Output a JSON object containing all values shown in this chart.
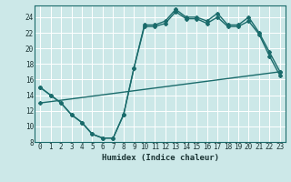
{
  "xlabel": "Humidex (Indice chaleur)",
  "bg_color": "#cce8e8",
  "grid_color": "#ffffff",
  "line_color": "#1a6b6b",
  "xlim_min": -0.5,
  "xlim_max": 23.5,
  "ylim_min": 8,
  "ylim_max": 25.5,
  "xticks": [
    0,
    1,
    2,
    3,
    4,
    5,
    6,
    7,
    8,
    9,
    10,
    11,
    12,
    13,
    14,
    15,
    16,
    17,
    18,
    19,
    20,
    21,
    22,
    23
  ],
  "yticks": [
    8,
    10,
    12,
    14,
    16,
    18,
    20,
    22,
    24
  ],
  "curve1_x": [
    0,
    1,
    2,
    3,
    4,
    5,
    6,
    7,
    8,
    9,
    10,
    11,
    12,
    13,
    14,
    15,
    16,
    17,
    18,
    19,
    20,
    21,
    22,
    23
  ],
  "curve1_y": [
    15.0,
    14.0,
    13.0,
    11.5,
    10.5,
    9.0,
    8.5,
    8.5,
    11.5,
    17.5,
    23.0,
    23.0,
    23.5,
    25.0,
    24.0,
    24.0,
    23.5,
    24.5,
    23.0,
    23.0,
    24.0,
    22.0,
    19.5,
    17.0
  ],
  "curve2_x": [
    0,
    1,
    2,
    3,
    4,
    5,
    6,
    7,
    8,
    9,
    10,
    11,
    12,
    13,
    14,
    15,
    16,
    17,
    18,
    19,
    20,
    21,
    22,
    23
  ],
  "curve2_y": [
    15.0,
    14.0,
    13.0,
    11.5,
    10.5,
    9.0,
    8.5,
    8.5,
    11.5,
    17.5,
    22.8,
    22.8,
    23.2,
    24.7,
    23.8,
    23.8,
    23.2,
    24.0,
    22.8,
    22.8,
    23.5,
    21.8,
    19.0,
    16.5
  ],
  "line3_x": [
    0,
    23
  ],
  "line3_y": [
    13.0,
    17.0
  ],
  "linewidth": 1.0,
  "markersize": 2.0,
  "xlabel_fontsize": 6.5,
  "tick_fontsize": 5.5
}
